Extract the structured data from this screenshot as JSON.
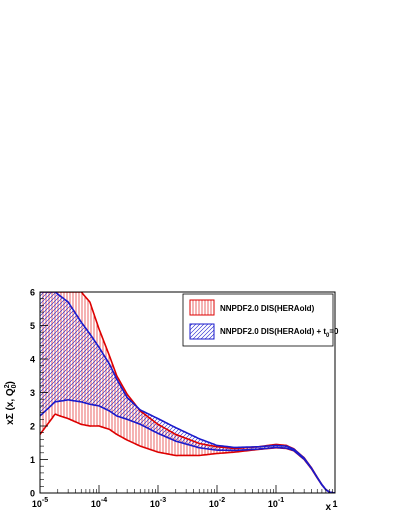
{
  "chart_data": {
    "type": "line",
    "title": "",
    "xlabel": "x",
    "ylabel_parts": {
      "main": "xΣ (x, Q",
      "sup": "2",
      "sub": "0",
      "close": ")"
    },
    "xscale": "log",
    "xlim": [
      1e-05,
      1
    ],
    "ylim": [
      0,
      6
    ],
    "y_ticks": [
      {
        "value": 0,
        "label": "0"
      },
      {
        "value": 1,
        "label": "1"
      },
      {
        "value": 2,
        "label": "2"
      },
      {
        "value": 3,
        "label": "3"
      },
      {
        "value": 4,
        "label": "4"
      },
      {
        "value": 5,
        "label": "5"
      },
      {
        "value": 6,
        "label": "6"
      }
    ],
    "x_ticks": [
      {
        "value": 1e-05,
        "base": "10",
        "exp": "-5"
      },
      {
        "value": 0.0001,
        "base": "10",
        "exp": "-4"
      },
      {
        "value": 0.001,
        "base": "10",
        "exp": "-3"
      },
      {
        "value": 0.01,
        "base": "10",
        "exp": "-2"
      },
      {
        "value": 0.1,
        "base": "10",
        "exp": "-1"
      },
      {
        "value": 1,
        "base": "1",
        "exp": ""
      }
    ],
    "legend_position": "top-right",
    "legend": [
      {
        "series": "NNPDF2.0 DIS(HERAold)",
        "label": "NNPDF2.0 DIS(HERAold)",
        "color": "#dd0000",
        "hatch": "vertical"
      },
      {
        "series": "NNPDF2.0 DIS(HERAold) + t0=0",
        "label_parts": {
          "main": "NNPDF2.0 DIS(HERAold) + t",
          "sub": "0",
          "tail": "=0"
        },
        "color": "#1a1acc",
        "hatch": "diagonal"
      }
    ],
    "series": [
      {
        "name": "NNPDF2.0 DIS(HERAold)",
        "color": "#dd0000",
        "hatch": "vertical",
        "x": [
          1e-05,
          1.8e-05,
          3e-05,
          5e-05,
          7e-05,
          0.0001,
          0.00015,
          0.0002,
          0.0003,
          0.0005,
          0.001,
          0.002,
          0.005,
          0.01,
          0.02,
          0.05,
          0.1,
          0.15,
          0.2,
          0.3,
          0.4,
          0.5,
          0.6,
          0.7,
          0.8,
          0.9,
          1.0
        ],
        "upper": [
          6.0,
          6.0,
          6.0,
          6.0,
          5.7,
          4.9,
          4.1,
          3.5,
          2.95,
          2.45,
          2.05,
          1.75,
          1.48,
          1.38,
          1.33,
          1.38,
          1.45,
          1.42,
          1.32,
          1.05,
          0.75,
          0.47,
          0.25,
          0.1,
          0.03,
          0.01,
          0.0
        ],
        "lower": [
          1.75,
          2.35,
          2.22,
          2.05,
          2.0,
          2.0,
          1.9,
          1.75,
          1.58,
          1.4,
          1.22,
          1.12,
          1.12,
          1.18,
          1.22,
          1.3,
          1.35,
          1.33,
          1.26,
          1.0,
          0.72,
          0.45,
          0.24,
          0.1,
          0.03,
          0.01,
          0.0
        ]
      },
      {
        "name": "NNPDF2.0 DIS(HERAold) + t0=0",
        "color": "#1a1acc",
        "hatch": "diagonal",
        "x": [
          1e-05,
          1.8e-05,
          3e-05,
          5e-05,
          7e-05,
          0.0001,
          0.00015,
          0.0002,
          0.0003,
          0.0005,
          0.001,
          0.002,
          0.005,
          0.01,
          0.02,
          0.05,
          0.1,
          0.15,
          0.2,
          0.3,
          0.4,
          0.5,
          0.6,
          0.7,
          0.8,
          0.9,
          1.0
        ],
        "upper": [
          6.0,
          6.0,
          5.7,
          5.1,
          4.75,
          4.35,
          3.85,
          3.4,
          2.85,
          2.48,
          2.22,
          1.95,
          1.62,
          1.42,
          1.36,
          1.38,
          1.42,
          1.4,
          1.31,
          1.04,
          0.74,
          0.46,
          0.25,
          0.1,
          0.03,
          0.01,
          0.0
        ],
        "lower": [
          2.3,
          2.72,
          2.78,
          2.72,
          2.65,
          2.6,
          2.45,
          2.3,
          2.2,
          2.05,
          1.78,
          1.55,
          1.35,
          1.28,
          1.27,
          1.31,
          1.36,
          1.34,
          1.27,
          1.01,
          0.73,
          0.46,
          0.24,
          0.1,
          0.03,
          0.01,
          0.0
        ]
      }
    ]
  }
}
